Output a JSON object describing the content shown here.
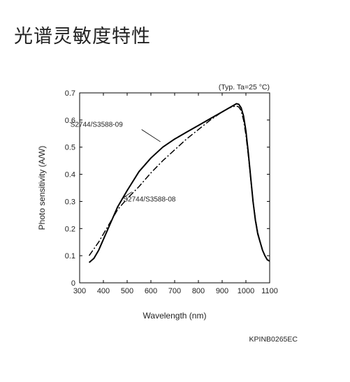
{
  "page": {
    "title": "光谱灵敏度特性"
  },
  "chart_data": {
    "type": "line",
    "title": "",
    "annotation": "(Typ. Ta=25 °C)",
    "xlabel": "Wavelength (nm)",
    "ylabel": "Photo sensitivity (A/W)",
    "xlim": [
      300,
      1100
    ],
    "ylim": [
      0,
      0.7
    ],
    "xticks": [
      300,
      400,
      500,
      600,
      700,
      800,
      900,
      1000,
      1100
    ],
    "yticks": [
      0,
      0.1,
      0.2,
      0.3,
      0.4,
      0.5,
      0.6,
      0.7
    ],
    "grid": false,
    "series": [
      {
        "name": "S2744/S3588-09",
        "style": "solid",
        "x": [
          340,
          360,
          380,
          400,
          430,
          460,
          500,
          550,
          600,
          650,
          700,
          750,
          800,
          850,
          900,
          930,
          950,
          960,
          970,
          980,
          990,
          1000,
          1010,
          1020,
          1030,
          1040,
          1050,
          1060,
          1070,
          1080,
          1090,
          1100
        ],
        "y": [
          0.075,
          0.09,
          0.12,
          0.16,
          0.22,
          0.28,
          0.34,
          0.41,
          0.46,
          0.5,
          0.53,
          0.555,
          0.58,
          0.605,
          0.63,
          0.645,
          0.655,
          0.66,
          0.658,
          0.645,
          0.615,
          0.56,
          0.48,
          0.39,
          0.3,
          0.23,
          0.18,
          0.15,
          0.12,
          0.1,
          0.085,
          0.08
        ]
      },
      {
        "name": "S2744/S3588-08",
        "style": "dash-dot",
        "x": [
          340,
          360,
          380,
          400,
          430,
          460,
          500,
          550,
          600,
          650,
          700,
          750,
          800,
          850,
          900,
          930,
          950,
          960,
          970,
          980,
          990,
          1000,
          1010,
          1020,
          1030,
          1040,
          1050,
          1060,
          1070,
          1080,
          1090,
          1100
        ],
        "y": [
          0.1,
          0.125,
          0.15,
          0.18,
          0.225,
          0.27,
          0.31,
          0.355,
          0.405,
          0.45,
          0.49,
          0.53,
          0.565,
          0.6,
          0.63,
          0.645,
          0.65,
          0.652,
          0.648,
          0.635,
          0.6,
          0.545,
          0.47,
          0.385,
          0.3,
          0.235,
          0.185,
          0.15,
          0.12,
          0.1,
          0.085,
          0.08
        ]
      }
    ],
    "series_labels": {
      "s1": {
        "text": "S2744/S3588-09",
        "x": 555,
        "y": 0.57
      },
      "s2": {
        "text": "S2744/S3588-08",
        "x": 660,
        "y": 0.305
      }
    },
    "code": "KPINB0265EC"
  }
}
